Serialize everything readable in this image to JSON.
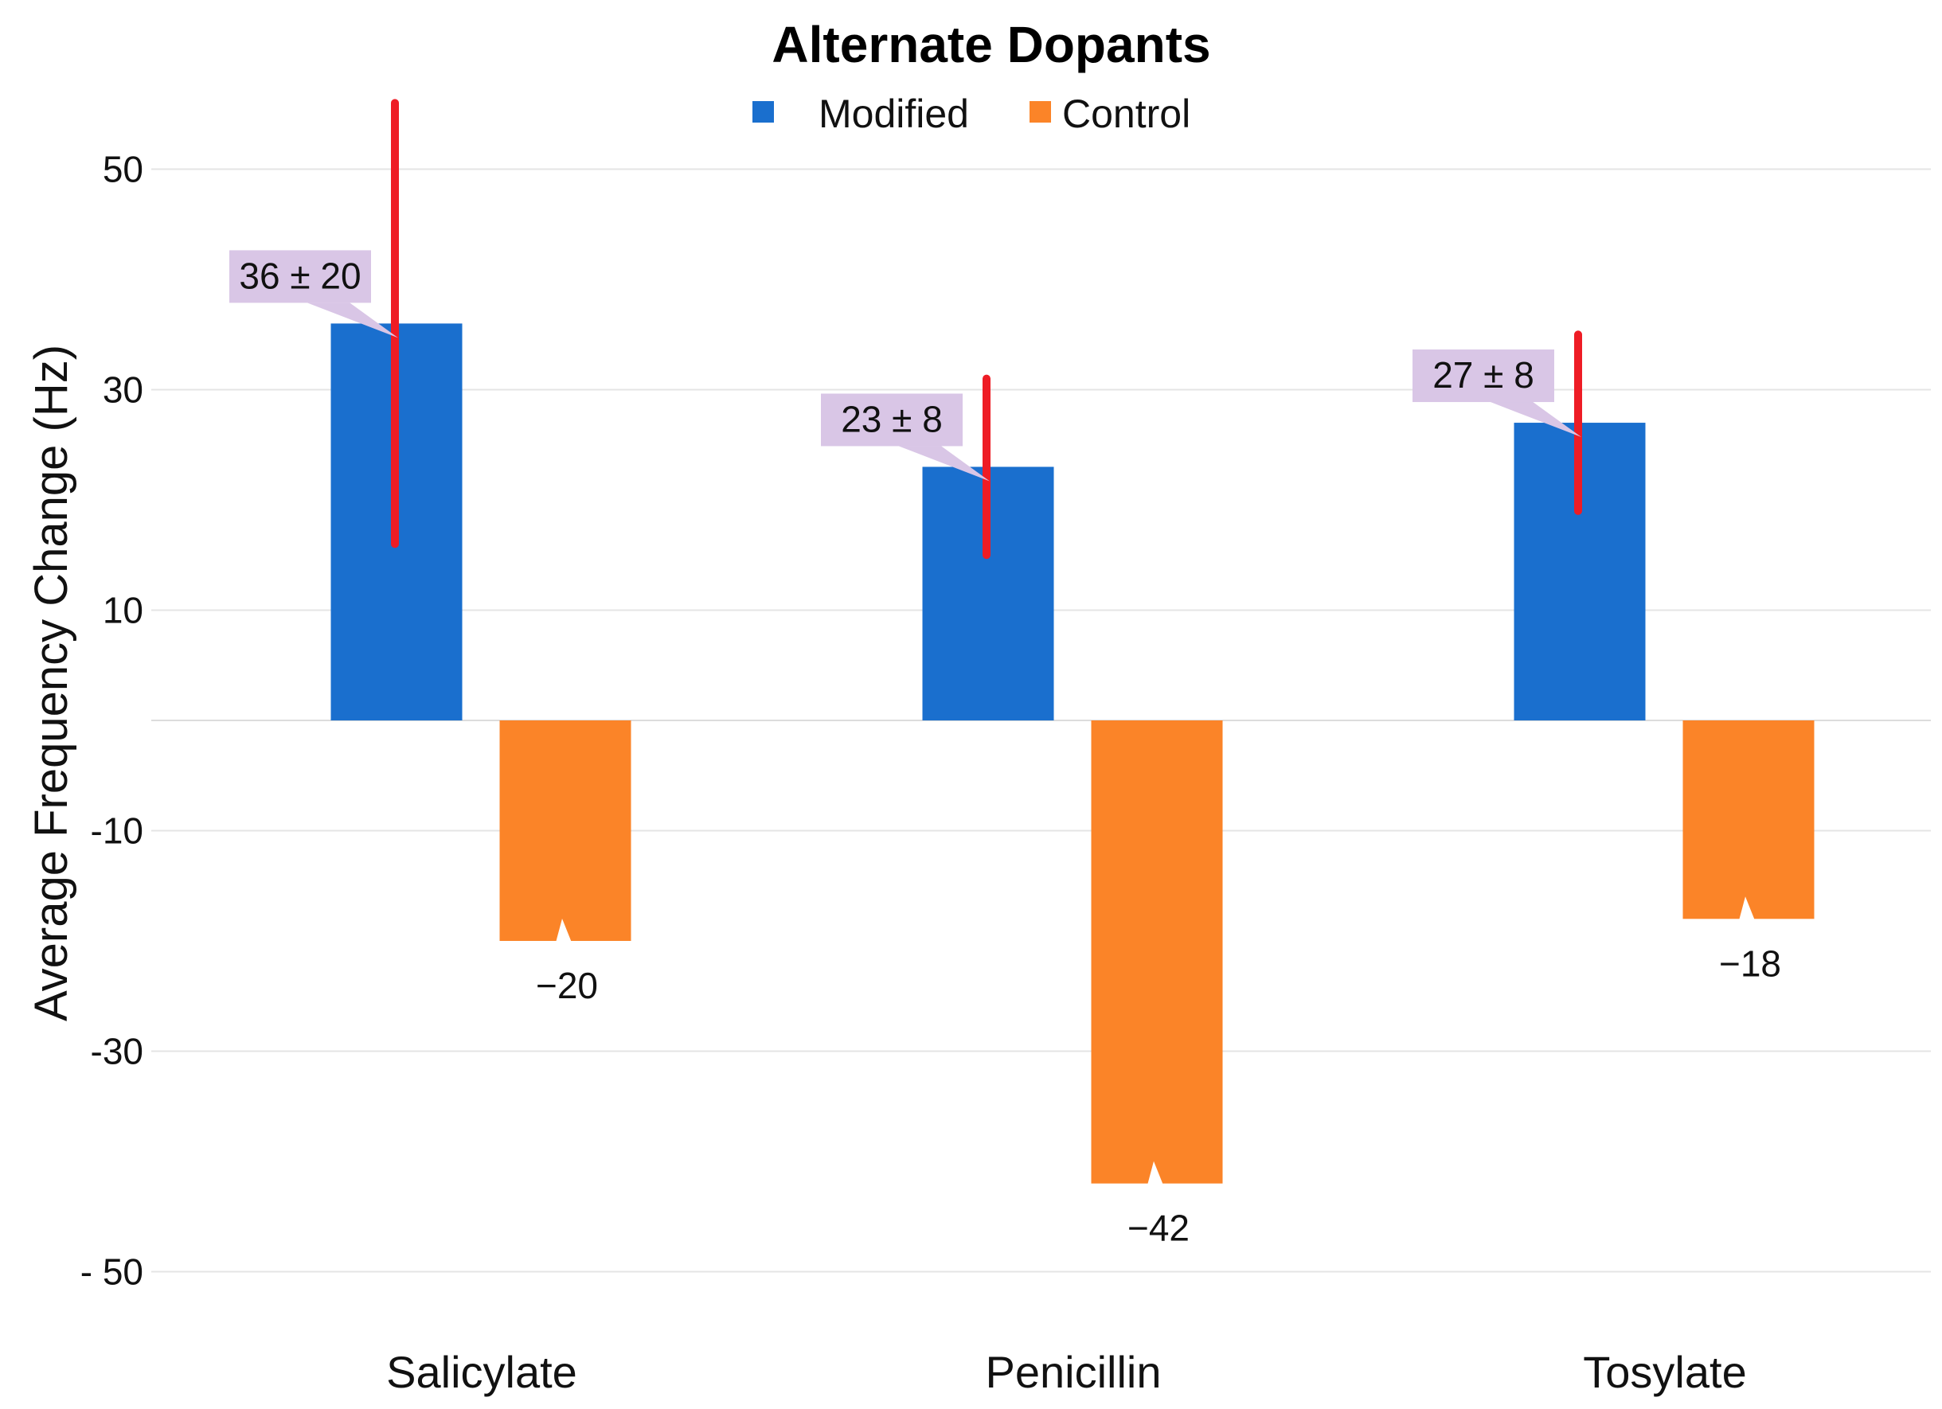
{
  "chart_data": {
    "type": "bar",
    "title": "Alternate Dopants",
    "xlabel": "",
    "ylabel": "Average Frequency Change (Hz)",
    "categories": [
      "Salicylate",
      "Penicillin",
      "Tosylate"
    ],
    "series": [
      {
        "name": "Modified",
        "color": "#1a6fce",
        "values": [
          36,
          23,
          27
        ],
        "errors": [
          20,
          8,
          8
        ],
        "data_labels": [
          "36 ± 20",
          "23 ± 8",
          "27 ± 8"
        ]
      },
      {
        "name": "Control",
        "color": "#fb8428",
        "values": [
          -20,
          -42,
          -18
        ],
        "data_labels": [
          "−20",
          "−42",
          "−18"
        ]
      }
    ],
    "error_bar_color": "#ee1c25",
    "label_bg_color": "#d9c6e6",
    "y_ticks": [
      50,
      30,
      10,
      -10,
      -30,
      -50
    ],
    "y_tick_labels": [
      "50",
      "30",
      "10",
      "-10",
      "-30",
      "- 50"
    ],
    "ylim": [
      -56,
      61
    ],
    "grid": true,
    "legend_position": "top-center"
  }
}
